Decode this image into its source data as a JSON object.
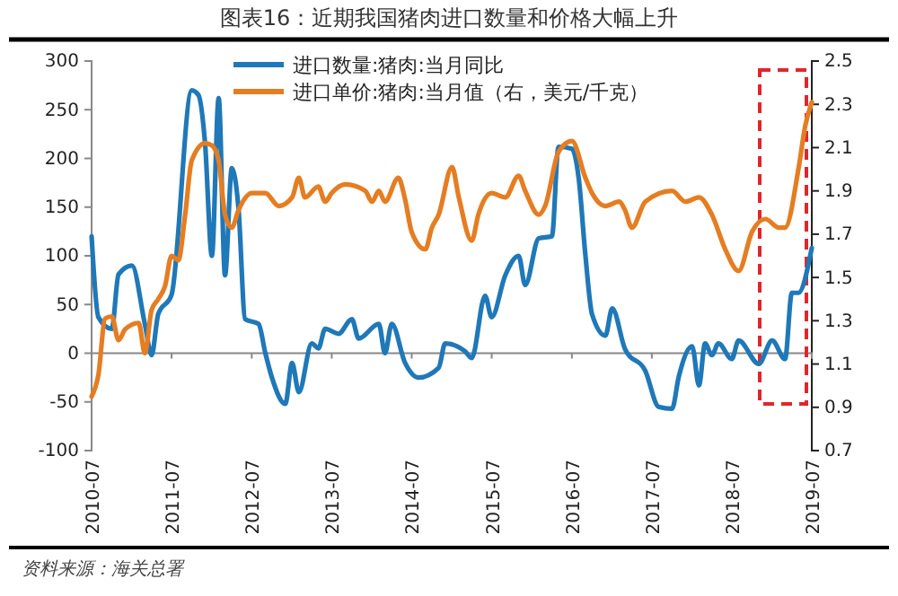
{
  "chart_data": {
    "type": "line",
    "title": "图表16：近期我国猪肉进口数量和价格大幅上升",
    "xlim": [
      "2010-07",
      "2019-07"
    ],
    "xticks": [
      "2010-07",
      "2011-07",
      "2012-07",
      "2013-07",
      "2014-07",
      "2015-07",
      "2016-07",
      "2017-07",
      "2018-07",
      "2019-07"
    ],
    "ylim": [
      -100,
      300
    ],
    "yticks": [
      -100,
      -50,
      0,
      50,
      100,
      150,
      200,
      250,
      300
    ],
    "y2lim": [
      0.7,
      2.5
    ],
    "y2ticks": [
      0.7,
      0.9,
      1.1,
      1.3,
      1.5,
      1.7,
      1.9,
      2.1,
      2.3,
      2.5
    ],
    "legend": "top",
    "grid": false,
    "series": [
      {
        "name": "进口数量:猪肉:当月同比",
        "color": "#1f78b8",
        "x": [
          "2010-07",
          "2010-08",
          "2010-10",
          "2010-11",
          "2011-01",
          "2011-03",
          "2011-04",
          "2011-05",
          "2011-07",
          "2011-10",
          "2011-11",
          "2011-12",
          "2012-01",
          "2012-02",
          "2012-03",
          "2012-04",
          "2012-05",
          "2012-06",
          "2012-08",
          "2012-09",
          "2012-10",
          "2012-12",
          "2013-01",
          "2013-02",
          "2013-04",
          "2013-05",
          "2013-06",
          "2013-08",
          "2013-10",
          "2013-11",
          "2014-02",
          "2014-03",
          "2014-04",
          "2014-06",
          "2014-08",
          "2014-11",
          "2014-12",
          "2015-03",
          "2015-04",
          "2015-06",
          "2015-07",
          "2015-09",
          "2015-11",
          "2015-12",
          "2016-02",
          "2016-04",
          "2016-05",
          "2016-07",
          "2016-08",
          "2016-09",
          "2016-10",
          "2016-12",
          "2017-01",
          "2017-03",
          "2017-06",
          "2017-08",
          "2017-10",
          "2017-11",
          "2018-01",
          "2018-02",
          "2018-03",
          "2018-04",
          "2018-05",
          "2018-07",
          "2018-08",
          "2018-11",
          "2019-01",
          "2019-03",
          "2019-04",
          "2019-05",
          "2019-07"
        ],
        "values": [
          120,
          37,
          25,
          81,
          90,
          30,
          -2,
          40,
          60,
          270,
          265,
          215,
          100,
          262,
          80,
          190,
          150,
          35,
          30,
          0,
          -25,
          -52,
          -10,
          -40,
          10,
          5,
          25,
          20,
          35,
          15,
          30,
          0,
          30,
          -10,
          -25,
          -15,
          10,
          2,
          -5,
          59,
          37,
          80,
          100,
          70,
          118,
          120,
          212,
          210,
          180,
          100,
          40,
          18,
          46,
          4,
          -18,
          -55,
          -57,
          -24,
          7,
          -33,
          10,
          -2,
          10,
          -6,
          13,
          -11,
          13,
          -6,
          62,
          62,
          108
        ]
      },
      {
        "name": "进口单价:猪肉:当月值（右，美元/千克）",
        "color": "#e57d22",
        "axis": "y2",
        "x": [
          "2010-07",
          "2010-08",
          "2010-09",
          "2010-10",
          "2010-11",
          "2010-12",
          "2011-02",
          "2011-03",
          "2011-04",
          "2011-05",
          "2011-06",
          "2011-07",
          "2011-08",
          "2011-09",
          "2011-10",
          "2011-12",
          "2012-01",
          "2012-02",
          "2012-03",
          "2012-04",
          "2012-05",
          "2012-07",
          "2012-09",
          "2012-11",
          "2013-01",
          "2013-02",
          "2013-03",
          "2013-05",
          "2013-06",
          "2013-07",
          "2013-09",
          "2013-12",
          "2014-01",
          "2014-02",
          "2014-03",
          "2014-05",
          "2014-06",
          "2014-07",
          "2014-09",
          "2014-10",
          "2014-11",
          "2015-01",
          "2015-02",
          "2015-04",
          "2015-05",
          "2015-07",
          "2015-09",
          "2015-11",
          "2015-12",
          "2016-02",
          "2016-03",
          "2016-05",
          "2016-07",
          "2016-09",
          "2016-10",
          "2016-12",
          "2017-02",
          "2017-03",
          "2017-04",
          "2017-06",
          "2017-10",
          "2017-12",
          "2018-02",
          "2018-04",
          "2018-06",
          "2018-08",
          "2018-10",
          "2018-12",
          "2019-02",
          "2019-03",
          "2019-05",
          "2019-06",
          "2019-07"
        ],
        "values": [
          0.95,
          1.05,
          1.31,
          1.32,
          1.21,
          1.26,
          1.29,
          1.15,
          1.35,
          1.4,
          1.46,
          1.6,
          1.58,
          1.79,
          2.04,
          2.12,
          2.11,
          2.04,
          1.79,
          1.73,
          1.81,
          1.89,
          1.89,
          1.83,
          1.87,
          1.96,
          1.87,
          1.92,
          1.85,
          1.89,
          1.93,
          1.9,
          1.85,
          1.9,
          1.85,
          1.96,
          1.86,
          1.71,
          1.63,
          1.73,
          1.79,
          2.01,
          1.87,
          1.67,
          1.79,
          1.89,
          1.87,
          1.97,
          1.9,
          1.79,
          1.83,
          2.08,
          2.13,
          1.96,
          1.89,
          1.83,
          1.85,
          1.81,
          1.73,
          1.85,
          1.9,
          1.85,
          1.87,
          1.79,
          1.63,
          1.53,
          1.71,
          1.77,
          1.73,
          1.73,
          2.0,
          2.2,
          2.31
        ]
      }
    ],
    "annotations": [
      "资料来源：海关总署"
    ]
  }
}
